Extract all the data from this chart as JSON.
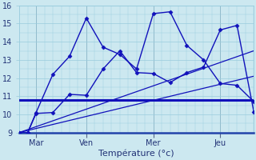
{
  "background_color": "#cce8f0",
  "grid_color": "#99ccdd",
  "line_color": "#1111bb",
  "xlabel": "Température (°c)",
  "xlabel_fontsize": 8,
  "ylim": [
    9,
    16
  ],
  "xlim": [
    0,
    14
  ],
  "yticks": [
    9,
    10,
    11,
    12,
    13,
    14,
    15,
    16
  ],
  "day_labels": [
    "Mar",
    "Ven",
    "Mer",
    "Jeu"
  ],
  "day_positions": [
    1,
    4,
    8,
    12
  ],
  "series": [
    {
      "x": [
        0,
        0.5,
        1,
        2,
        3,
        4,
        5,
        6,
        7,
        8,
        9,
        10,
        11,
        12,
        13,
        14
      ],
      "y": [
        9.0,
        9.0,
        10.1,
        12.2,
        13.2,
        15.3,
        13.7,
        13.3,
        12.5,
        15.55,
        15.65,
        13.8,
        13.0,
        11.7,
        11.6,
        10.7
      ],
      "marker": "D",
      "markersize": 2.5,
      "linewidth": 1.0
    },
    {
      "x": [
        0,
        0.5,
        1,
        2,
        3,
        4,
        5,
        6,
        7,
        8,
        9,
        10,
        11,
        12,
        13,
        14
      ],
      "y": [
        9.0,
        9.0,
        10.05,
        10.1,
        11.1,
        11.05,
        12.5,
        13.5,
        12.3,
        12.25,
        11.75,
        12.3,
        12.6,
        14.65,
        14.9,
        10.15
      ],
      "marker": "D",
      "markersize": 2.5,
      "linewidth": 1.0
    },
    {
      "x": [
        0,
        14
      ],
      "y": [
        9.0,
        13.5
      ],
      "marker": null,
      "markersize": 0,
      "linewidth": 0.9
    },
    {
      "x": [
        0,
        14
      ],
      "y": [
        9.0,
        12.1
      ],
      "marker": null,
      "markersize": 0,
      "linewidth": 0.9
    },
    {
      "x": [
        0,
        14
      ],
      "y": [
        10.8,
        10.8
      ],
      "marker": null,
      "markersize": 0,
      "linewidth": 2.2
    }
  ]
}
